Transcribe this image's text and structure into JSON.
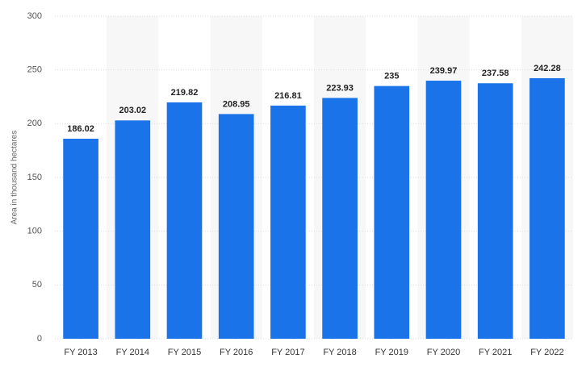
{
  "chart_data": {
    "type": "bar",
    "y_label": "Area in thousand hectares",
    "categories": [
      "FY 2013",
      "FY 2014",
      "FY 2015",
      "FY 2016",
      "FY 2017",
      "FY 2018",
      "FY 2019",
      "FY 2020",
      "FY 2021",
      "FY 2022"
    ],
    "values": [
      186.02,
      203.02,
      219.82,
      208.95,
      216.81,
      223.93,
      235,
      239.97,
      237.58,
      242.28
    ],
    "color": "#1a73e8",
    "ylim": [
      0,
      300
    ],
    "yticks": [
      0,
      50,
      100,
      150,
      200,
      250,
      300
    ],
    "grid": true
  }
}
